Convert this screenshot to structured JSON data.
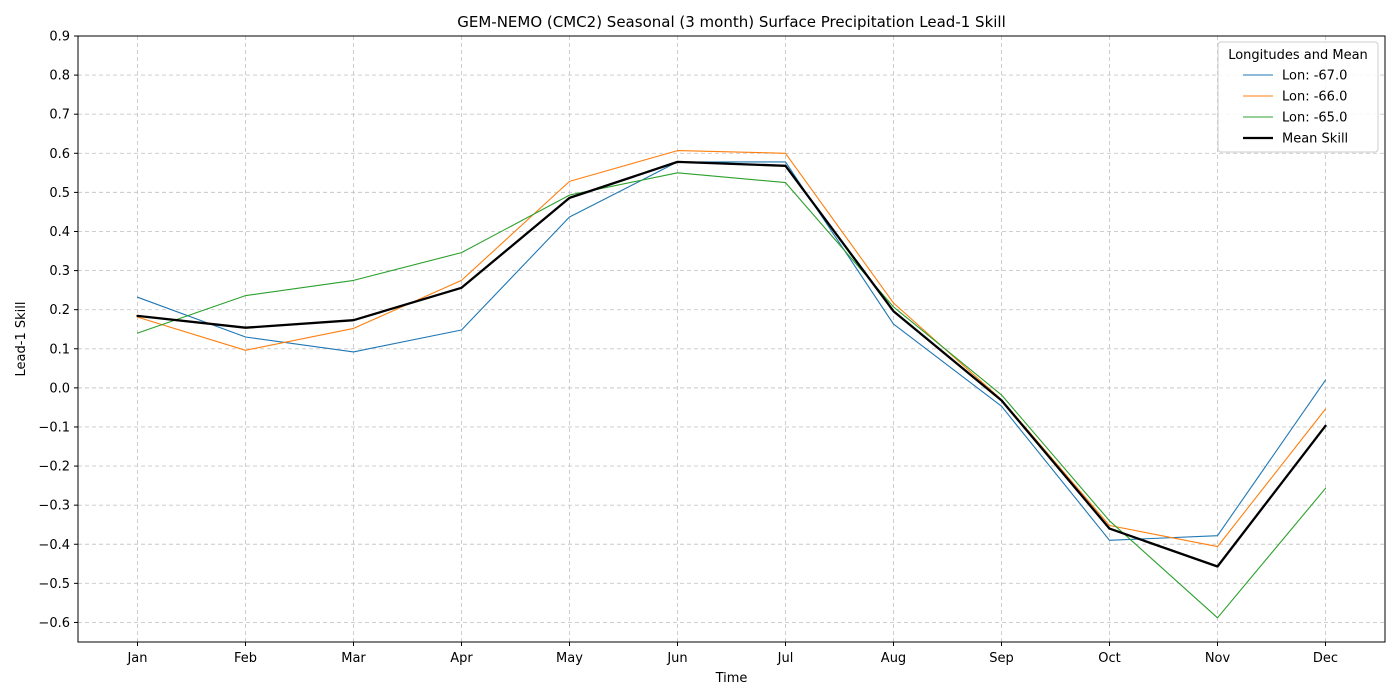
{
  "chart_data": {
    "type": "line",
    "title": "GEM-NEMO (CMC2) Seasonal (3 month) Surface Precipitation Lead-1 Skill",
    "xlabel": "Time",
    "ylabel": "Lead-1 Skill",
    "categories": [
      "Jan",
      "Feb",
      "Mar",
      "Apr",
      "May",
      "Jun",
      "Jul",
      "Aug",
      "Sep",
      "Oct",
      "Nov",
      "Dec"
    ],
    "ylim": [
      -0.65,
      0.9
    ],
    "yticks": [
      "−0.6",
      "−0.5",
      "−0.4",
      "−0.3",
      "−0.2",
      "−0.1",
      "0.0",
      "0.1",
      "0.2",
      "0.3",
      "0.4",
      "0.5",
      "0.6",
      "0.7",
      "0.8",
      "0.9"
    ],
    "grid": true,
    "legend": {
      "title": "Longitudes and Mean",
      "placement": "top-right"
    },
    "series": [
      {
        "name": "Lon: -67.0",
        "color": "#1f77b4",
        "width": 1.1,
        "values": [
          0.232,
          0.13,
          0.092,
          0.148,
          0.437,
          0.578,
          0.578,
          0.163,
          -0.047,
          -0.39,
          -0.378,
          0.02
        ]
      },
      {
        "name": "Lon: -66.0",
        "color": "#ff7f0e",
        "width": 1.1,
        "values": [
          0.181,
          0.096,
          0.152,
          0.275,
          0.528,
          0.607,
          0.6,
          0.217,
          -0.03,
          -0.352,
          -0.406,
          -0.054
        ]
      },
      {
        "name": "Lon: -65.0",
        "color": "#2ca02c",
        "width": 1.1,
        "values": [
          0.14,
          0.236,
          0.275,
          0.346,
          0.493,
          0.55,
          0.525,
          0.207,
          -0.018,
          -0.34,
          -0.588,
          -0.257
        ]
      },
      {
        "name": "Mean Skill",
        "color": "#000000",
        "width": 2.3,
        "values": [
          0.184,
          0.154,
          0.173,
          0.256,
          0.486,
          0.578,
          0.568,
          0.196,
          -0.032,
          -0.36,
          -0.457,
          -0.097
        ]
      }
    ]
  }
}
